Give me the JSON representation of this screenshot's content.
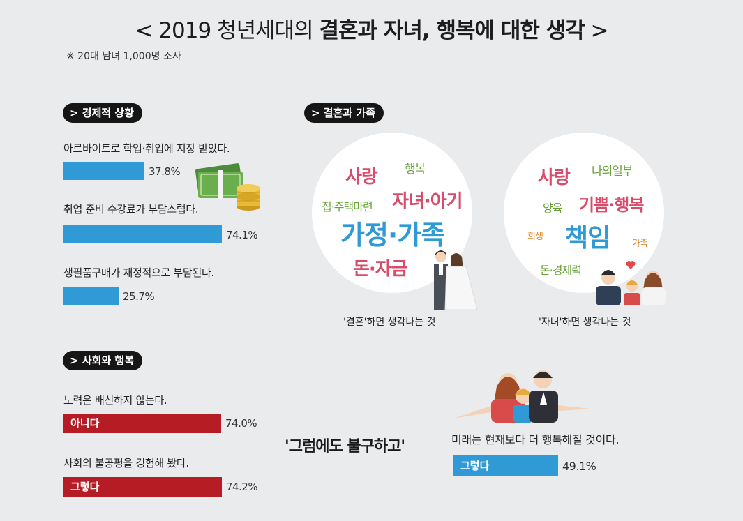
{
  "header": {
    "title_prefix": "< 2019 청년세대의 ",
    "title_bold": "결혼과 자녀, 행복에 대한 생각",
    "title_suffix": " >",
    "note": "※ 20대 남녀 1,000명 조사"
  },
  "colors": {
    "blue": "#2f9ad6",
    "red": "#b51c24",
    "pink": "#d94b6b",
    "green": "#6aa23a",
    "orange": "#e08a2c"
  },
  "sections": {
    "economy": "> 경제적 상황",
    "family": "> 결혼과 가족",
    "society": "> 사회와 행복"
  },
  "marriage_words": [
    "사랑",
    "행복",
    "집·주택마련",
    "자녀·아기",
    "가정·가족",
    "돈·자금"
  ],
  "children_words": [
    "사랑",
    "나의일부",
    "양육",
    "기쁨·행복",
    "희생",
    "책임",
    "가족",
    "돈·경제력"
  ],
  "captions": {
    "marriage": "'결혼'하면 생각나는 것",
    "children": "'자녀'하면 생각나는 것"
  },
  "quote": "'그럼에도 불구하고'",
  "chart_data": [
    {
      "type": "bar",
      "section": "경제적 상황",
      "categories": [
        "아르바이트로 학업·취업에 지장 받았다.",
        "취업 준비 수강료가 부담스럽다.",
        "생필품구매가 재정적으로 부담된다."
      ],
      "values": [
        37.8,
        74.1,
        25.7
      ],
      "value_labels": [
        "37.8%",
        "74.1%",
        "25.7%"
      ],
      "ylim": [
        0,
        100
      ]
    },
    {
      "type": "bar",
      "section": "사회와 행복",
      "categories": [
        "노력은 배신하지 않는다.",
        "사회의 불공평을 경험해 봤다."
      ],
      "bar_labels": [
        "아니다",
        "그렇다"
      ],
      "values": [
        74.0,
        74.2
      ],
      "value_labels": [
        "74.0%",
        "74.2%"
      ],
      "ylim": [
        0,
        100
      ]
    },
    {
      "type": "bar",
      "categories": [
        "미래는 현재보다 더 행복해질 것이다."
      ],
      "bar_labels": [
        "그렇다"
      ],
      "values": [
        49.1
      ],
      "value_labels": [
        "49.1%"
      ],
      "ylim": [
        0,
        100
      ]
    }
  ]
}
